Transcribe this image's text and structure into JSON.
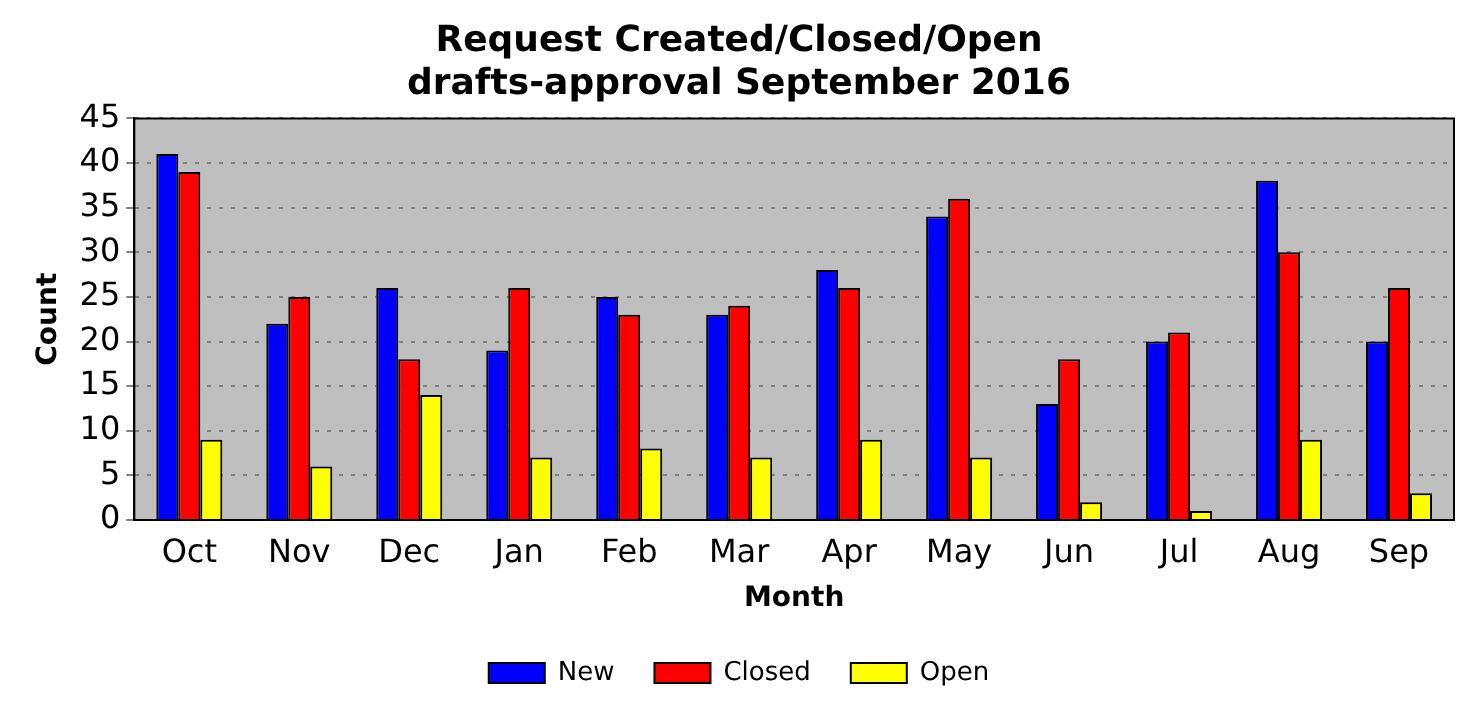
{
  "chart_data": {
    "type": "bar",
    "title": "Request Created/Closed/Open\ndrafts-approval September 2016",
    "xlabel": "Month",
    "ylabel": "Count",
    "categories": [
      "Oct",
      "Nov",
      "Dec",
      "Jan",
      "Feb",
      "Mar",
      "Apr",
      "May",
      "Jun",
      "Jul",
      "Aug",
      "Sep"
    ],
    "series": [
      {
        "name": "New",
        "color": "#0000ff",
        "values": [
          41,
          22,
          26,
          19,
          25,
          23,
          28,
          34,
          13,
          20,
          38,
          20
        ]
      },
      {
        "name": "Closed",
        "color": "#ff0000",
        "values": [
          39,
          25,
          18,
          26,
          23,
          24,
          26,
          36,
          18,
          21,
          30,
          26
        ]
      },
      {
        "name": "Open",
        "color": "#ffff00",
        "values": [
          9,
          6,
          14,
          7,
          8,
          7,
          9,
          7,
          2,
          1,
          9,
          3
        ]
      }
    ],
    "ylim": [
      0,
      45
    ],
    "yticks": [
      0,
      5,
      10,
      15,
      20,
      25,
      30,
      35,
      40,
      45
    ],
    "grid": "y",
    "legend": "bottom"
  }
}
